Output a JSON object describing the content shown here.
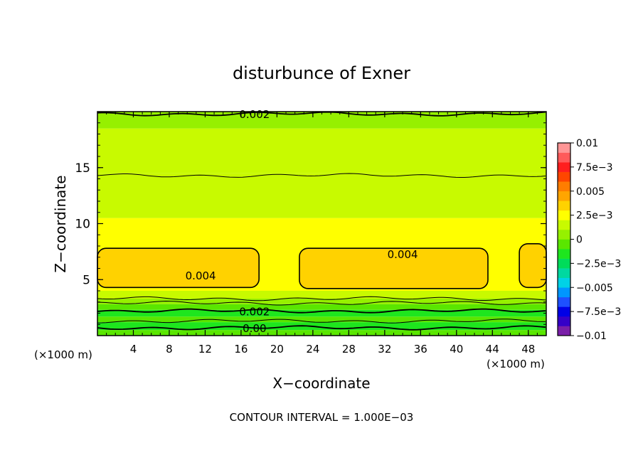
{
  "chart_data": {
    "type": "heatmap",
    "title": "disturbunce of Exner",
    "xlabel": "X−coordinate",
    "ylabel": "Z−coordinate",
    "x_unit_label": "(×1000 m)",
    "x_unit_label_2": "(×1000 m)",
    "xlim": [
      0,
      50
    ],
    "ylim": [
      0,
      20
    ],
    "x_ticks": [
      "4",
      "8",
      "12",
      "16",
      "20",
      "24",
      "28",
      "32",
      "36",
      "40",
      "44",
      "48"
    ],
    "y_ticks": [
      "5",
      "10",
      "15"
    ],
    "footer": "CONTOUR INTERVAL = 1.000E−03",
    "colorbar": {
      "tick_labels": [
        "0.01",
        "7.5e−3",
        "0.005",
        "2.5e−3",
        "0",
        "−2.5e−3",
        "−0.005",
        "−7.5e−3",
        "−0.01"
      ],
      "tick_values": [
        0.01,
        0.0075,
        0.005,
        0.0025,
        0,
        -0.0025,
        -0.005,
        -0.0075,
        -0.01
      ],
      "colors": [
        "#7a1fa8",
        "#3500c8",
        "#0000e6",
        "#1e50ff",
        "#0096ff",
        "#00d2e6",
        "#00d8a0",
        "#00dc5a",
        "#1ee61e",
        "#5ae600",
        "#96f000",
        "#c8fa00",
        "#ffff00",
        "#ffd200",
        "#ffa500",
        "#ff7d00",
        "#ff4600",
        "#ff1e1e",
        "#ff5a5a",
        "#ff9696"
      ]
    },
    "bands": [
      {
        "z_top": 0.5,
        "color": "#5ae600"
      },
      {
        "z_top": 1.2,
        "color": "#1ee61e"
      },
      {
        "z_top": 1.7,
        "color": "#5ae600"
      },
      {
        "z_top": 2.3,
        "color": "#1ee61e"
      },
      {
        "z_top": 2.8,
        "color": "#5ae600"
      },
      {
        "z_top": 3.3,
        "color": "#96f000"
      },
      {
        "z_top": 4.0,
        "color": "#c8fa00"
      },
      {
        "z_top": 10.5,
        "color": "#ffff00"
      },
      {
        "z_top": 14.5,
        "color": "#c8fa00"
      },
      {
        "z_top": 18.5,
        "color": "#c8fa00"
      },
      {
        "z_top": 20.0,
        "color": "#96f000"
      }
    ],
    "high_regions": [
      {
        "x": [
          0,
          18
        ],
        "z": [
          4.3,
          7.8
        ],
        "color": "#ffd200"
      },
      {
        "x": [
          22.5,
          43.5
        ],
        "z": [
          4.2,
          7.8
        ],
        "color": "#ffd200"
      },
      {
        "x": [
          47,
          50
        ],
        "z": [
          4.3,
          8.2
        ],
        "color": "#ffd200"
      }
    ],
    "contour_lines": [
      {
        "z": 0.7,
        "label": "0.00",
        "label_x": 17.5
      },
      {
        "z": 1.3
      },
      {
        "z": 2.2,
        "label": "0.002",
        "label_x": 17.5
      },
      {
        "z": 2.9
      },
      {
        "z": 3.3
      },
      {
        "z": 14.3
      },
      {
        "z": 19.8,
        "label": "0.002",
        "label_x": 17.5
      }
    ],
    "region_labels": [
      {
        "text": "0.004",
        "x": 11.5,
        "z": 5.4
      },
      {
        "text": "0.004",
        "x": 34.0,
        "z": 7.3
      }
    ]
  }
}
